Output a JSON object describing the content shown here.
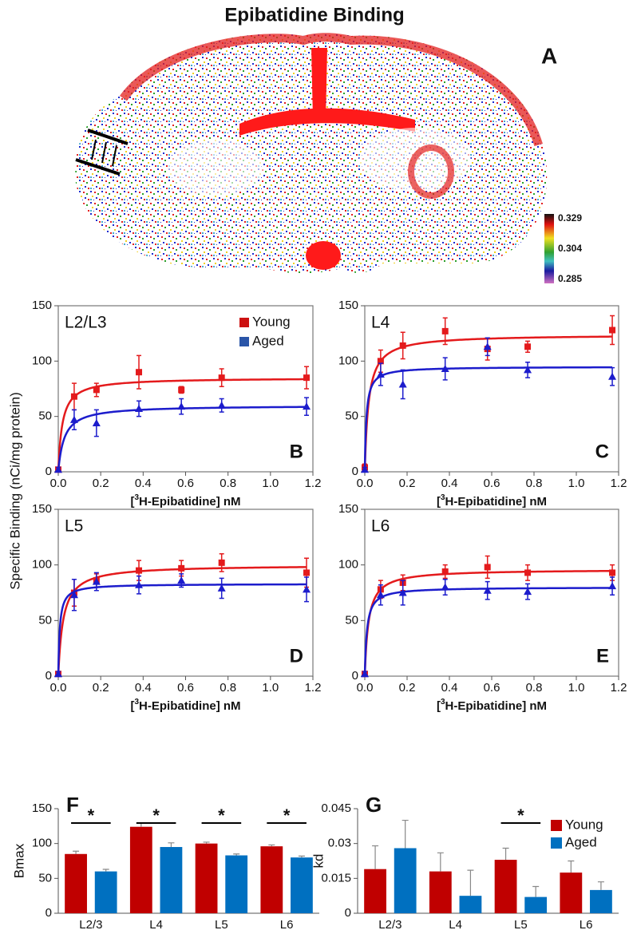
{
  "figure": {
    "title": "Epibatidine Binding",
    "ylabel": "Specific Binding (nCi/mg protein)",
    "panel_a": {
      "label": "A",
      "scale_labels": [
        0.329,
        0.304,
        0.285
      ]
    }
  },
  "chart_data": [
    {
      "type": "scatter",
      "label": "L2/L3",
      "panel": "B",
      "xlabel": {
        "open": "[",
        "sup": "3",
        "rest": "H-Epibatidine] nM"
      },
      "x": [
        0,
        0.075,
        0.18,
        0.38,
        0.58,
        0.77,
        1.17
      ],
      "xlim": [
        0,
        1.2
      ],
      "xticks": [
        {
          "value": 0,
          "label": "0.0"
        },
        {
          "value": 0.2,
          "label": "0.2"
        },
        {
          "value": 0.4,
          "label": "0.4"
        },
        {
          "value": 0.6,
          "label": "0.6"
        },
        {
          "value": 0.8,
          "label": "0.8"
        },
        {
          "value": 1,
          "label": "1.0"
        },
        {
          "value": 1.2,
          "label": "1.2"
        }
      ],
      "ylim": [
        0,
        150
      ],
      "yticks": [
        0,
        50,
        100,
        150
      ],
      "legend": "upper right",
      "series": [
        {
          "name": "Young",
          "color": "#e41a1c",
          "marker": "square",
          "values": [
            2,
            68,
            74,
            90,
            74,
            85,
            85
          ],
          "errors": [
            2,
            12,
            6,
            15,
            3,
            8,
            10
          ]
        },
        {
          "name": "Aged",
          "color": "#1c1ccc",
          "marker": "triangle",
          "values": [
            2,
            47,
            44,
            57,
            59,
            60,
            59
          ],
          "errors": [
            2,
            9,
            12,
            7,
            7,
            6,
            8
          ]
        }
      ]
    },
    {
      "type": "scatter",
      "label": "L4",
      "panel": "C",
      "xlabel": {
        "open": "[",
        "sup": "3",
        "rest": "H-Epibatidine] nM"
      },
      "x": [
        0,
        0.075,
        0.18,
        0.38,
        0.58,
        0.77,
        1.17
      ],
      "xlim": [
        0,
        1.2
      ],
      "xticks": [
        {
          "value": 0,
          "label": "0.0"
        },
        {
          "value": 0.2,
          "label": "0.2"
        },
        {
          "value": 0.4,
          "label": "0.4"
        },
        {
          "value": 0.6,
          "label": "0.6"
        },
        {
          "value": 0.8,
          "label": "0.8"
        },
        {
          "value": 1,
          "label": "1.0"
        },
        {
          "value": 1.2,
          "label": "1.2"
        }
      ],
      "ylim": [
        0,
        150
      ],
      "yticks": [
        0,
        50,
        100,
        150
      ],
      "series": [
        {
          "color": "#e41a1c",
          "marker": "square",
          "values": [
            4,
            100,
            114,
            127,
            111,
            113,
            128
          ],
          "errors": [
            3,
            10,
            12,
            12,
            10,
            5,
            13
          ]
        },
        {
          "color": "#1c1ccc",
          "marker": "triangle",
          "values": [
            2,
            88,
            79,
            93,
            113,
            92,
            86
          ],
          "errors": [
            2,
            10,
            13,
            10,
            8,
            7,
            8
          ]
        }
      ]
    },
    {
      "type": "scatter",
      "label": "L5",
      "panel": "D",
      "xlabel": {
        "open": "[",
        "sup": "3",
        "rest": "H-Epibatidine] nM"
      },
      "x": [
        0,
        0.075,
        0.18,
        0.38,
        0.58,
        0.77,
        1.17
      ],
      "xlim": [
        0,
        1.2
      ],
      "xticks": [
        {
          "value": 0,
          "label": "0.0"
        },
        {
          "value": 0.2,
          "label": "0.2"
        },
        {
          "value": 0.4,
          "label": "0.4"
        },
        {
          "value": 0.6,
          "label": "0.6"
        },
        {
          "value": 0.8,
          "label": "0.8"
        },
        {
          "value": 1,
          "label": "1.0"
        },
        {
          "value": 1.2,
          "label": "1.2"
        }
      ],
      "ylim": [
        0,
        150
      ],
      "yticks": [
        0,
        50,
        100,
        150
      ],
      "series": [
        {
          "color": "#e41a1c",
          "marker": "square",
          "values": [
            2,
            75,
            86,
            95,
            97,
            102,
            93
          ],
          "errors": [
            2,
            12,
            6,
            9,
            7,
            8,
            13
          ]
        },
        {
          "color": "#1c1ccc",
          "marker": "triangle",
          "values": [
            2,
            73,
            85,
            82,
            86,
            79,
            78
          ],
          "errors": [
            2,
            14,
            8,
            8,
            6,
            9,
            11
          ]
        }
      ]
    },
    {
      "type": "scatter",
      "label": "L6",
      "panel": "E",
      "xlabel": {
        "open": "[",
        "sup": "3",
        "rest": "H-Epibatidine] nM"
      },
      "x": [
        0,
        0.075,
        0.18,
        0.38,
        0.58,
        0.77,
        1.17
      ],
      "xlim": [
        0,
        1.2
      ],
      "xticks": [
        {
          "value": 0,
          "label": "0.0"
        },
        {
          "value": 0.2,
          "label": "0.2"
        },
        {
          "value": 0.4,
          "label": "0.4"
        },
        {
          "value": 0.6,
          "label": "0.6"
        },
        {
          "value": 0.8,
          "label": "0.8"
        },
        {
          "value": 1,
          "label": "1.0"
        },
        {
          "value": 1.2,
          "label": "1.2"
        }
      ],
      "ylim": [
        0,
        150
      ],
      "yticks": [
        0,
        50,
        100,
        150
      ],
      "series": [
        {
          "color": "#e41a1c",
          "marker": "square",
          "values": [
            2,
            78,
            84,
            94,
            98,
            93,
            93
          ],
          "errors": [
            2,
            8,
            7,
            6,
            10,
            7,
            7
          ]
        },
        {
          "color": "#1c1ccc",
          "marker": "triangle",
          "values": [
            2,
            73,
            75,
            80,
            77,
            76,
            81
          ],
          "errors": [
            2,
            9,
            11,
            7,
            8,
            7,
            8
          ]
        }
      ]
    },
    {
      "type": "bar",
      "panel": "F",
      "ylabel": "Bmax",
      "categories": [
        "L2/3",
        "L4",
        "L5",
        "L6"
      ],
      "ylim": [
        0,
        150
      ],
      "yticks": [
        0,
        50,
        100,
        150
      ],
      "significance": [
        "*",
        "*",
        "*",
        "*"
      ],
      "series": [
        {
          "color": "#c00000",
          "values": [
            85,
            124,
            100,
            96
          ],
          "errors": [
            4,
            5,
            2,
            2
          ]
        },
        {
          "color": "#0070c0",
          "values": [
            60,
            95,
            83,
            80
          ],
          "errors": [
            3,
            6,
            2,
            2
          ]
        }
      ]
    },
    {
      "type": "bar",
      "panel": "G",
      "ylabel": "kd",
      "categories": [
        "L2/3",
        "L4",
        "L5",
        "L6"
      ],
      "ylim": [
        0,
        0.045
      ],
      "yticks": [
        0,
        0.015,
        0.03,
        0.045
      ],
      "legend": "upper right",
      "significance": [
        null,
        null,
        "*",
        null
      ],
      "series": [
        {
          "name": "Young",
          "color": "#c00000",
          "values": [
            0.019,
            0.018,
            0.023,
            0.0175
          ],
          "errors": [
            0.01,
            0.008,
            0.005,
            0.005
          ]
        },
        {
          "name": "Aged",
          "color": "#0070c0",
          "values": [
            0.028,
            0.0075,
            0.007,
            0.01
          ],
          "errors": [
            0.012,
            0.011,
            0.0045,
            0.0035
          ]
        }
      ]
    }
  ]
}
